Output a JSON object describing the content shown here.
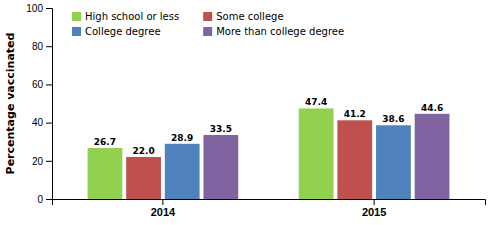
{
  "chart_data": {
    "type": "bar",
    "categories": [
      "2014",
      "2015"
    ],
    "series": [
      {
        "name": "High school or less",
        "color": "#92d050",
        "values": [
          26.7,
          47.4
        ],
        "value_labels": [
          "26.7",
          "47.4"
        ]
      },
      {
        "name": "Some college",
        "color": "#c0504d",
        "values": [
          22.0,
          41.2
        ],
        "value_labels": [
          "22.0",
          "41.2"
        ]
      },
      {
        "name": "College degree",
        "color": "#4f81bd",
        "values": [
          28.9,
          38.6
        ],
        "value_labels": [
          "28.9",
          "38.6"
        ]
      },
      {
        "name": "More than college degree",
        "color": "#8064a2",
        "values": [
          33.5,
          44.6
        ],
        "value_labels": [
          "33.5",
          "44.6"
        ]
      }
    ],
    "ylabel": "Percentage vaccinated",
    "ylim": [
      0,
      100
    ],
    "yticks": [
      0,
      20,
      40,
      60,
      80,
      100
    ],
    "grid": false,
    "legend": "upper left",
    "data_labels": true
  }
}
